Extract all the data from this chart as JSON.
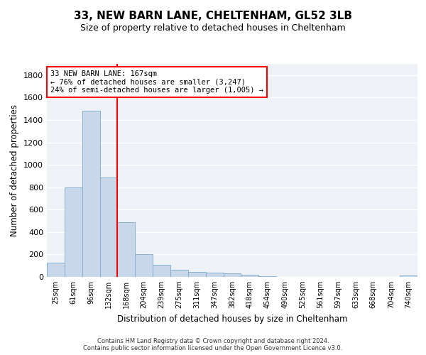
{
  "title1": "33, NEW BARN LANE, CHELTENHAM, GL52 3LB",
  "title2": "Size of property relative to detached houses in Cheltenham",
  "xlabel": "Distribution of detached houses by size in Cheltenham",
  "ylabel": "Number of detached properties",
  "footer": "Contains HM Land Registry data © Crown copyright and database right 2024.\nContains public sector information licensed under the Open Government Licence v3.0.",
  "categories": [
    "25sqm",
    "61sqm",
    "96sqm",
    "132sqm",
    "168sqm",
    "204sqm",
    "239sqm",
    "275sqm",
    "311sqm",
    "347sqm",
    "382sqm",
    "418sqm",
    "454sqm",
    "490sqm",
    "525sqm",
    "561sqm",
    "597sqm",
    "633sqm",
    "668sqm",
    "704sqm",
    "740sqm"
  ],
  "values": [
    125,
    800,
    1480,
    885,
    490,
    205,
    105,
    65,
    45,
    35,
    30,
    20,
    5,
    0,
    0,
    0,
    0,
    0,
    0,
    0,
    15
  ],
  "bar_color": "#c8d8ea",
  "bar_edge_color": "#7aabcc",
  "vline_color": "red",
  "vline_x_index": 4,
  "annotation_text_line1": "33 NEW BARN LANE: 167sqm",
  "annotation_text_line2": "← 76% of detached houses are smaller (3,247)",
  "annotation_text_line3": "24% of semi-detached houses are larger (1,005) →",
  "ylim": [
    0,
    1900
  ],
  "yticks": [
    0,
    200,
    400,
    600,
    800,
    1000,
    1200,
    1400,
    1600,
    1800
  ],
  "bg_color": "#eef2f7",
  "grid_color": "#ffffff",
  "annotation_fontsize": 7.5,
  "title1_fontsize": 11,
  "title2_fontsize": 9,
  "footer_fontsize": 6.0
}
